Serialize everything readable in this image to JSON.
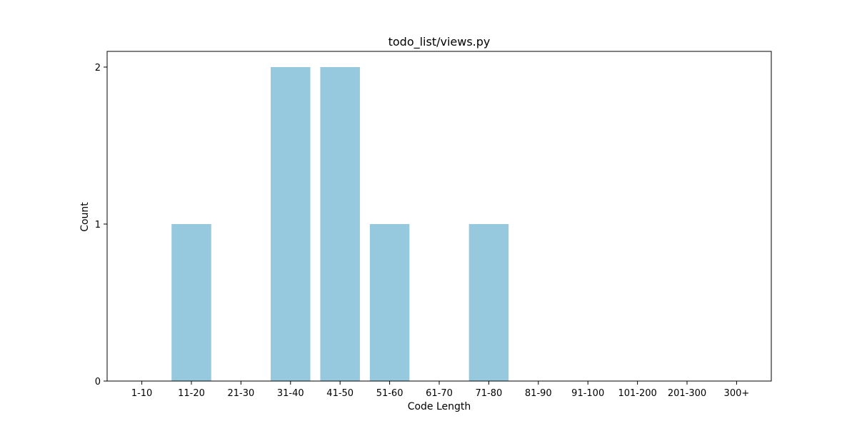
{
  "chart_data": {
    "type": "bar",
    "title": "todo_list/views.py",
    "xlabel": "Code Length",
    "ylabel": "Count",
    "categories": [
      "1-10",
      "11-20",
      "21-30",
      "31-40",
      "41-50",
      "51-60",
      "61-70",
      "71-80",
      "81-90",
      "91-100",
      "101-200",
      "201-300",
      "300+"
    ],
    "values": [
      0,
      1,
      0,
      2,
      2,
      1,
      0,
      1,
      0,
      0,
      0,
      0,
      0
    ],
    "yticks": [
      0,
      1,
      2
    ],
    "ylim": [
      0,
      2.1
    ],
    "grid": false,
    "bar_color": "#96c9de"
  }
}
